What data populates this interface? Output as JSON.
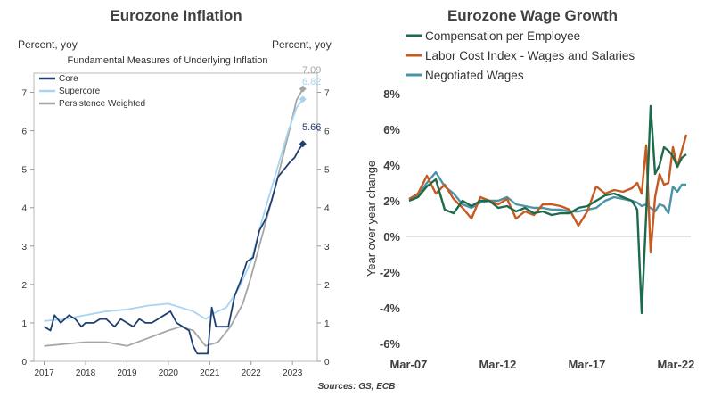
{
  "colors": {
    "core": "#1f3f73",
    "supercore": "#a8d4f2",
    "persistence": "#a6a6a6",
    "compensation": "#1d6b4a",
    "lci": "#c55a22",
    "negotiated": "#4a93a8"
  },
  "sources": "Sources: GS, ECB",
  "chart_data": [
    {
      "type": "line",
      "title": "Eurozone Inflation",
      "subtitle": "Fundamental Measures of Underlying Inflation",
      "ylabel_left": "Percent, yoy",
      "ylabel_right": "Percent, yoy",
      "xlim": [
        2016.75,
        2023.6
      ],
      "ylim": [
        0,
        7.5
      ],
      "xticks": [
        2017,
        2018,
        2019,
        2020,
        2021,
        2022,
        2023
      ],
      "xtick_labels": [
        "2017",
        "2018",
        "2019",
        "2020",
        "2021",
        "2022",
        "2023"
      ],
      "yticks": [
        0,
        1,
        2,
        3,
        4,
        5,
        6,
        7
      ],
      "ytick_labels": [
        "0",
        "1",
        "2",
        "3",
        "4",
        "5",
        "6",
        "7"
      ],
      "legend": "top-left",
      "grid": false,
      "end_labels": [
        "7.09",
        "6.82",
        "5.66"
      ],
      "series": [
        {
          "name": "Core",
          "x": [
            2017.0,
            2017.15,
            2017.25,
            2017.4,
            2017.6,
            2017.75,
            2017.9,
            2018.0,
            2018.2,
            2018.35,
            2018.5,
            2018.7,
            2018.85,
            2019.0,
            2019.15,
            2019.3,
            2019.45,
            2019.6,
            2019.75,
            2019.9,
            2020.05,
            2020.2,
            2020.35,
            2020.5,
            2020.6,
            2020.7,
            2020.8,
            2020.95,
            2021.05,
            2021.15,
            2021.3,
            2021.45,
            2021.6,
            2021.75,
            2021.9,
            2022.05,
            2022.2,
            2022.35,
            2022.5,
            2022.65,
            2022.8,
            2022.95,
            2023.05,
            2023.15,
            2023.25
          ],
          "y": [
            0.9,
            0.8,
            1.2,
            1.0,
            1.2,
            1.1,
            0.9,
            1.0,
            1.0,
            1.1,
            1.1,
            0.9,
            1.1,
            1.0,
            0.9,
            1.1,
            1.0,
            1.0,
            1.1,
            1.2,
            1.3,
            1.0,
            0.9,
            0.8,
            0.4,
            0.2,
            0.2,
            0.2,
            1.4,
            0.9,
            0.9,
            0.9,
            1.7,
            2.1,
            2.6,
            2.7,
            3.4,
            3.7,
            4.2,
            4.8,
            5.0,
            5.2,
            5.3,
            5.5,
            5.66
          ]
        },
        {
          "name": "Supercore",
          "x": [
            2017.0,
            2017.5,
            2018.0,
            2018.5,
            2019.0,
            2019.5,
            2020.0,
            2020.3,
            2020.6,
            2020.9,
            2021.1,
            2021.4,
            2021.7,
            2022.0,
            2022.3,
            2022.6,
            2022.9,
            2023.1,
            2023.25
          ],
          "y": [
            1.05,
            1.1,
            1.2,
            1.3,
            1.35,
            1.45,
            1.5,
            1.4,
            1.3,
            1.1,
            1.25,
            1.4,
            1.9,
            2.6,
            3.8,
            4.9,
            6.0,
            6.6,
            6.82
          ]
        },
        {
          "name": "Persistence Weighted",
          "x": [
            2017.0,
            2017.5,
            2018.0,
            2018.5,
            2019.0,
            2019.5,
            2020.0,
            2020.3,
            2020.6,
            2020.9,
            2021.2,
            2021.5,
            2021.8,
            2022.0,
            2022.3,
            2022.6,
            2022.9,
            2023.1,
            2023.25
          ],
          "y": [
            0.4,
            0.45,
            0.5,
            0.5,
            0.4,
            0.6,
            0.8,
            0.9,
            0.8,
            0.4,
            0.5,
            0.9,
            1.5,
            2.2,
            3.4,
            4.6,
            5.9,
            6.8,
            7.09
          ]
        }
      ]
    },
    {
      "type": "line",
      "title": "Eurozone Wage Growth",
      "xlabel": "",
      "ylabel": "Year over year change",
      "xlim": [
        2007.0,
        2023.0
      ],
      "ylim": [
        -6,
        8
      ],
      "xticks": [
        2007.17,
        2012.17,
        2017.17,
        2022.17
      ],
      "xtick_labels": [
        "Mar-07",
        "Mar-12",
        "Mar-17",
        "Mar-22"
      ],
      "yticks": [
        -6,
        -4,
        -2,
        0,
        2,
        4,
        6,
        8
      ],
      "ytick_labels": [
        "-6%",
        "-4%",
        "-2%",
        "0%",
        "2%",
        "4%",
        "6%",
        "8%"
      ],
      "legend": "top",
      "grid": false,
      "series": [
        {
          "name": "Compensation per Employee",
          "x": [
            2007.2,
            2007.7,
            2008.2,
            2008.7,
            2009.2,
            2009.7,
            2010.2,
            2010.7,
            2011.2,
            2011.7,
            2012.2,
            2012.7,
            2013.2,
            2013.7,
            2014.2,
            2014.7,
            2015.2,
            2015.7,
            2016.2,
            2016.7,
            2017.2,
            2017.7,
            2018.2,
            2018.7,
            2019.2,
            2019.7,
            2020.0,
            2020.25,
            2020.5,
            2020.75,
            2021.0,
            2021.25,
            2021.5,
            2021.75,
            2022.0,
            2022.25,
            2022.5,
            2022.75
          ],
          "y": [
            2.0,
            2.2,
            2.8,
            3.2,
            1.5,
            1.3,
            2.0,
            1.7,
            2.0,
            2.0,
            1.6,
            1.7,
            1.4,
            1.6,
            1.3,
            1.4,
            1.2,
            1.3,
            1.3,
            1.6,
            1.7,
            2.0,
            2.3,
            2.4,
            2.2,
            2.0,
            1.5,
            -4.3,
            1.2,
            7.3,
            3.5,
            4.0,
            5.0,
            4.8,
            4.5,
            3.9,
            4.4,
            4.6
          ]
        },
        {
          "name": "Labor Cost Index - Wages and Salaries",
          "x": [
            2007.2,
            2007.7,
            2008.2,
            2008.7,
            2009.2,
            2009.7,
            2010.2,
            2010.7,
            2011.2,
            2011.7,
            2012.2,
            2012.7,
            2013.2,
            2013.7,
            2014.2,
            2014.7,
            2015.2,
            2015.7,
            2016.2,
            2016.7,
            2017.2,
            2017.7,
            2018.2,
            2018.7,
            2019.2,
            2019.7,
            2020.0,
            2020.25,
            2020.5,
            2020.75,
            2021.0,
            2021.25,
            2021.5,
            2021.75,
            2022.0,
            2022.25,
            2022.5,
            2022.75
          ],
          "y": [
            2.1,
            2.4,
            3.4,
            2.4,
            2.9,
            2.1,
            1.6,
            1.0,
            2.2,
            2.0,
            1.8,
            2.1,
            1.0,
            1.4,
            1.2,
            1.8,
            1.8,
            1.7,
            1.5,
            0.6,
            1.4,
            2.8,
            2.4,
            2.6,
            2.5,
            2.7,
            3.0,
            2.4,
            5.1,
            -0.9,
            2.2,
            3.5,
            2.9,
            3.0,
            5.0,
            3.9,
            4.8,
            5.7
          ]
        },
        {
          "name": "Negotiated Wages",
          "x": [
            2007.2,
            2007.7,
            2008.2,
            2008.7,
            2009.2,
            2009.7,
            2010.2,
            2010.7,
            2011.2,
            2011.7,
            2012.2,
            2012.7,
            2013.2,
            2013.7,
            2014.2,
            2014.7,
            2015.2,
            2015.7,
            2016.2,
            2016.7,
            2017.2,
            2017.7,
            2018.2,
            2018.7,
            2019.2,
            2019.7,
            2020.0,
            2020.25,
            2020.5,
            2020.75,
            2021.0,
            2021.25,
            2021.5,
            2021.75,
            2022.0,
            2022.25,
            2022.5,
            2022.75
          ],
          "y": [
            2.1,
            2.3,
            3.0,
            3.6,
            2.8,
            2.4,
            1.8,
            1.6,
            1.9,
            2.0,
            2.0,
            2.2,
            1.8,
            1.7,
            1.6,
            1.6,
            1.5,
            1.5,
            1.4,
            1.4,
            1.5,
            1.6,
            2.0,
            2.2,
            2.1,
            2.0,
            1.9,
            1.7,
            1.8,
            1.6,
            1.4,
            1.8,
            1.7,
            1.3,
            2.8,
            2.5,
            2.9,
            2.9
          ]
        }
      ]
    }
  ]
}
